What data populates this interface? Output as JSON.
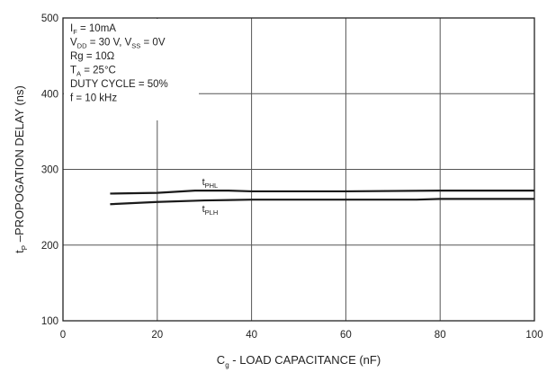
{
  "chart_data": {
    "type": "line",
    "title": "",
    "xlabel": {
      "main": "C",
      "sub": "g",
      "rest": " - LOAD CAPACITANCE (nF)"
    },
    "ylabel": {
      "main": "t",
      "sub": "P",
      "rest": " –PROPOGATION DELAY (ns)"
    },
    "xlim": [
      0,
      100
    ],
    "ylim": [
      100,
      500
    ],
    "x_ticks": [
      0,
      20,
      40,
      60,
      80,
      100
    ],
    "y_ticks": [
      100,
      200,
      300,
      400,
      500
    ],
    "grid": true,
    "series": [
      {
        "name": "tPHL",
        "label_main": "t",
        "label_sub": "PHL",
        "x": [
          10,
          20,
          28,
          35,
          40,
          60,
          80,
          100
        ],
        "values": [
          268,
          269,
          272,
          272,
          271,
          271,
          272,
          272
        ]
      },
      {
        "name": "tPLH",
        "label_main": "t",
        "label_sub": "PLH",
        "x": [
          10,
          20,
          30,
          40,
          60,
          75,
          80,
          100
        ],
        "values": [
          254,
          257,
          259,
          260,
          260,
          260,
          261,
          261
        ]
      }
    ],
    "conditions": [
      {
        "main": "I",
        "sub": "F",
        "rest": " = 10mA"
      },
      {
        "main": "V",
        "sub": "DD",
        "rest": " = 30 V, V",
        "sub2": "SS",
        "rest2": " = 0V"
      },
      {
        "main": "Rg = 10Ω"
      },
      {
        "main": "T",
        "sub": "A",
        "rest": " = 25°C"
      },
      {
        "main": "DUTY CYCLE = 50%"
      },
      {
        "main": "f = 10 kHz"
      }
    ],
    "colors": {
      "line": "#1a1a1a",
      "grid": "#555555",
      "frame": "#222222"
    }
  }
}
